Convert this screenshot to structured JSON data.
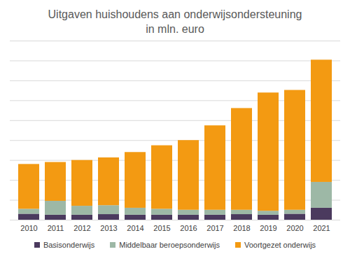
{
  "chart_data": {
    "type": "bar",
    "title": "Uitgaven huishoudens aan onderwijsondersteuning",
    "subtitle": "in mln. euro",
    "stacked": true,
    "categories": [
      "2010",
      "2011",
      "2012",
      "2013",
      "2014",
      "2015",
      "2016",
      "2017",
      "2018",
      "2019",
      "2020",
      "2021"
    ],
    "series": [
      {
        "name": "Basisonderwijs",
        "color": "#4b3a5e",
        "values": [
          30,
          25,
          25,
          28,
          25,
          25,
          25,
          25,
          28,
          25,
          30,
          60
        ]
      },
      {
        "name": "Middelbaar beroepsonderwijs",
        "color": "#9db8a6",
        "values": [
          25,
          70,
          45,
          45,
          35,
          30,
          25,
          25,
          22,
          20,
          20,
          130
        ]
      },
      {
        "name": "Voortgezet onderwijs",
        "color": "#f39a12",
        "values": [
          225,
          195,
          230,
          240,
          280,
          319,
          350,
          424,
          511,
          594,
          602,
          614
        ]
      }
    ],
    "ylim": [
      0,
      900
    ],
    "yticks": [
      0,
      100,
      200,
      300,
      400,
      500,
      600,
      700,
      800,
      900
    ],
    "grid": true,
    "legend": "bottom",
    "tick_labels": "x"
  }
}
